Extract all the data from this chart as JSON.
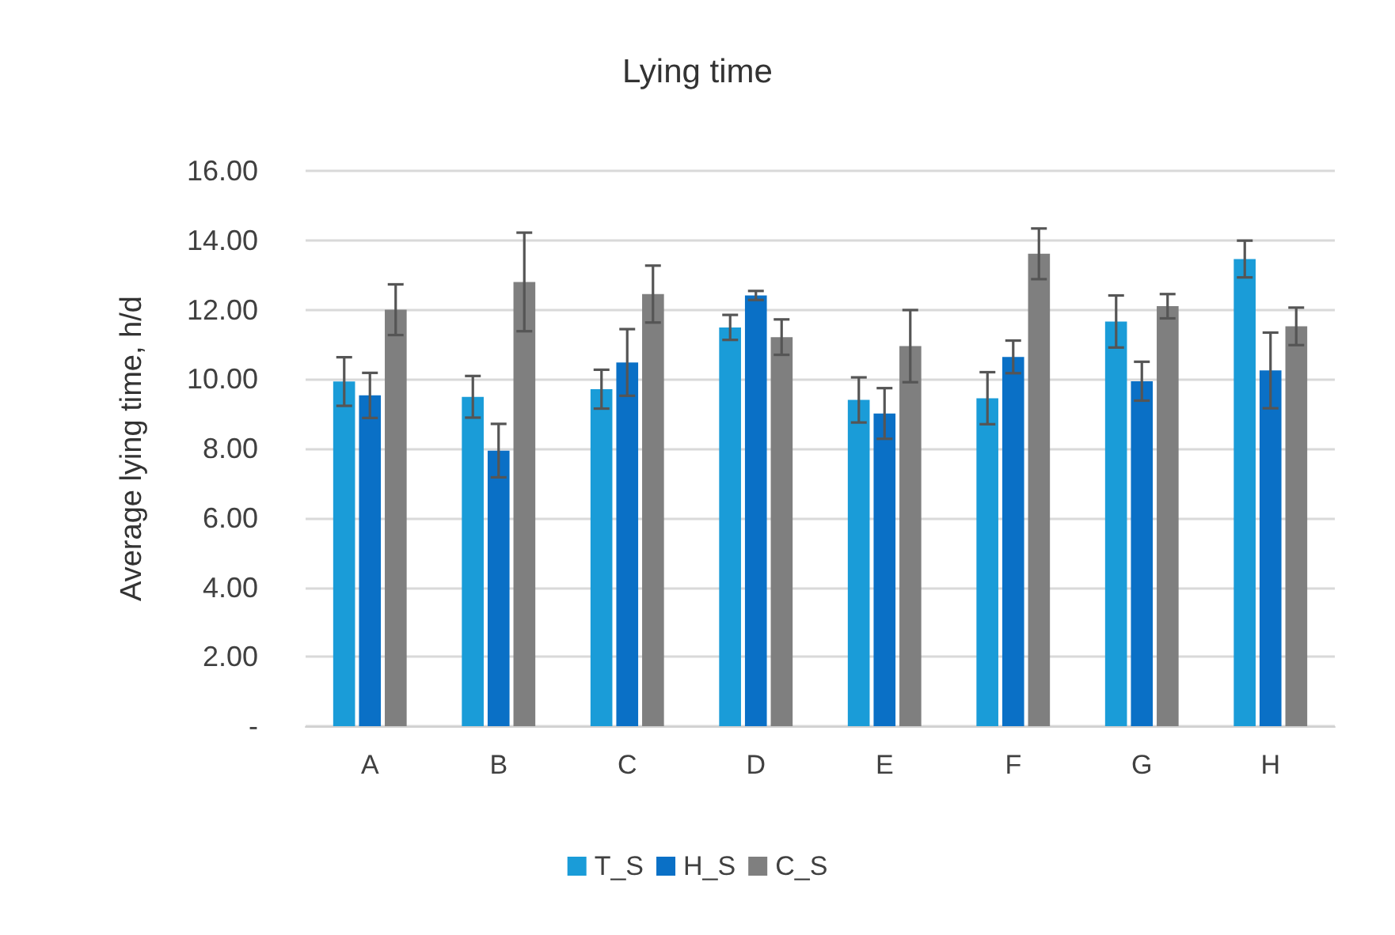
{
  "chart_data": {
    "type": "bar",
    "title": "Lying time",
    "ylabel": "Average lying time, h/d",
    "categories": [
      "A",
      "B",
      "C",
      "D",
      "E",
      "F",
      "G",
      "H"
    ],
    "series": [
      {
        "name": "T_S",
        "color": "#1a9cd8",
        "values": [
          9.93,
          9.49,
          9.71,
          11.49,
          9.4,
          9.45,
          11.66,
          13.46
        ],
        "errors": [
          0.7,
          0.6,
          0.56,
          0.36,
          0.65,
          0.75,
          0.75,
          0.53
        ]
      },
      {
        "name": "H_S",
        "color": "#0a70c6",
        "values": [
          9.53,
          7.94,
          10.48,
          12.41,
          9.01,
          10.64,
          9.94,
          10.25
        ],
        "errors": [
          0.65,
          0.77,
          0.96,
          0.13,
          0.73,
          0.47,
          0.56,
          1.09
        ]
      },
      {
        "name": "C_S",
        "color": "#7f7f7f",
        "values": [
          12.0,
          12.8,
          12.45,
          11.21,
          10.95,
          13.61,
          12.1,
          11.52
        ],
        "errors": [
          0.73,
          1.42,
          0.82,
          0.51,
          1.04,
          0.73,
          0.35,
          0.54
        ]
      }
    ],
    "ylim": [
      0,
      16
    ],
    "yticks": [
      {
        "value": 0,
        "label": "-"
      },
      {
        "value": 2,
        "label": "2.00"
      },
      {
        "value": 4,
        "label": "4.00"
      },
      {
        "value": 6,
        "label": "6.00"
      },
      {
        "value": 8,
        "label": "8.00"
      },
      {
        "value": 10,
        "label": "10.00"
      },
      {
        "value": 12,
        "label": "12.00"
      },
      {
        "value": 14,
        "label": "14.00"
      },
      {
        "value": 16,
        "label": "16.00"
      }
    ],
    "grid": "y",
    "legend": "bottom"
  }
}
